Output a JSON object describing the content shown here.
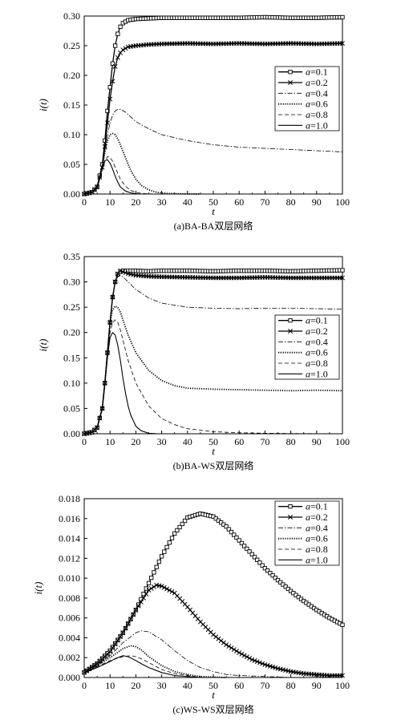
{
  "chart_data": [
    {
      "type": "line",
      "caption": "(a)BA-BA双层网络",
      "xlabel": "t",
      "ylabel": "i(t)",
      "xlim": [
        0,
        100
      ],
      "ylim": [
        0,
        0.3
      ],
      "xticks": [
        0,
        10,
        20,
        30,
        40,
        50,
        60,
        70,
        80,
        90,
        100
      ],
      "xtick_labels": [
        "0",
        "10",
        "20",
        "30",
        "40",
        "50",
        "60",
        "70",
        "80",
        "90",
        "100"
      ],
      "yticks": [
        0,
        0.05,
        0.1,
        0.15,
        0.2,
        0.25,
        0.3
      ],
      "ytick_labels": [
        "0.00",
        "0.05",
        "0.10",
        "0.15",
        "0.20",
        "0.25",
        "0.30"
      ],
      "legend_position": "right-middle",
      "series": [
        {
          "name": "a=0.1",
          "style": "square",
          "x": [
            0,
            3,
            5,
            7,
            8,
            9,
            10,
            11,
            12,
            13,
            14,
            15,
            17,
            20,
            25,
            30,
            40,
            50,
            60,
            70,
            80,
            90,
            100
          ],
          "y": [
            0,
            0.003,
            0.012,
            0.05,
            0.09,
            0.14,
            0.18,
            0.22,
            0.25,
            0.27,
            0.282,
            0.288,
            0.293,
            0.295,
            0.296,
            0.297,
            0.297,
            0.297,
            0.297,
            0.298,
            0.297,
            0.297,
            0.298
          ]
        },
        {
          "name": "a=0.2",
          "style": "cross",
          "x": [
            0,
            3,
            5,
            7,
            8,
            9,
            10,
            11,
            12,
            13,
            14,
            15,
            17,
            20,
            25,
            30,
            40,
            50,
            60,
            70,
            80,
            90,
            100
          ],
          "y": [
            0,
            0.003,
            0.012,
            0.045,
            0.08,
            0.12,
            0.16,
            0.19,
            0.215,
            0.23,
            0.238,
            0.243,
            0.248,
            0.25,
            0.252,
            0.253,
            0.254,
            0.253,
            0.254,
            0.253,
            0.254,
            0.253,
            0.254
          ]
        },
        {
          "name": "a=0.4",
          "style": "dashdot",
          "x": [
            0,
            3,
            5,
            7,
            8,
            9,
            10,
            11,
            12,
            13,
            14,
            16,
            18,
            20,
            25,
            30,
            40,
            50,
            60,
            70,
            80,
            90,
            100
          ],
          "y": [
            0,
            0.003,
            0.012,
            0.045,
            0.075,
            0.1,
            0.12,
            0.133,
            0.14,
            0.143,
            0.143,
            0.138,
            0.13,
            0.122,
            0.11,
            0.1,
            0.09,
            0.083,
            0.079,
            0.077,
            0.075,
            0.073,
            0.071
          ]
        },
        {
          "name": "a=0.6",
          "style": "dotted",
          "x": [
            0,
            3,
            5,
            7,
            8,
            9,
            10,
            11,
            12,
            13,
            14,
            15,
            16,
            18,
            20,
            22,
            25,
            28,
            32,
            36,
            40,
            45
          ],
          "y": [
            0,
            0.003,
            0.012,
            0.045,
            0.07,
            0.09,
            0.1,
            0.102,
            0.1,
            0.093,
            0.083,
            0.072,
            0.061,
            0.04,
            0.025,
            0.015,
            0.007,
            0.003,
            0.001,
            0.0005,
            0.0002,
            0
          ]
        },
        {
          "name": "a=0.8",
          "style": "dashed",
          "x": [
            0,
            3,
            5,
            7,
            8,
            9,
            10,
            11,
            12,
            13,
            14,
            16,
            18,
            20,
            22,
            25,
            30
          ],
          "y": [
            0,
            0.003,
            0.012,
            0.04,
            0.055,
            0.063,
            0.062,
            0.055,
            0.045,
            0.035,
            0.025,
            0.013,
            0.006,
            0.003,
            0.001,
            0.0003,
            0
          ]
        },
        {
          "name": "a=1.0",
          "style": "solid",
          "x": [
            0,
            3,
            5,
            6,
            7,
            8,
            9,
            10,
            11,
            12,
            13,
            14,
            16,
            18,
            20,
            22
          ],
          "y": [
            0,
            0.003,
            0.01,
            0.025,
            0.045,
            0.056,
            0.058,
            0.052,
            0.042,
            0.03,
            0.02,
            0.012,
            0.005,
            0.002,
            0.0005,
            0
          ]
        }
      ]
    },
    {
      "type": "line",
      "caption": "(b)BA-WS双层网络",
      "xlabel": "t",
      "ylabel": "i(t)",
      "xlim": [
        0,
        100
      ],
      "ylim": [
        0,
        0.35
      ],
      "xticks": [
        0,
        10,
        20,
        30,
        40,
        50,
        60,
        70,
        80,
        90,
        100
      ],
      "xtick_labels": [
        "0",
        "10",
        "20",
        "30",
        "40",
        "50",
        "60",
        "70",
        "80",
        "90",
        "100"
      ],
      "yticks": [
        0,
        0.05,
        0.1,
        0.15,
        0.2,
        0.25,
        0.3,
        0.35
      ],
      "ytick_labels": [
        "0.00",
        "0.05",
        "0.10",
        "0.15",
        "0.20",
        "0.25",
        "0.30",
        "0.35"
      ],
      "legend_position": "right-middle",
      "series": [
        {
          "name": "a=0.1",
          "style": "square",
          "x": [
            0,
            3,
            5,
            7,
            8,
            9,
            10,
            11,
            12,
            13,
            14,
            15,
            17,
            20,
            25,
            30,
            40,
            50,
            60,
            70,
            80,
            90,
            100
          ],
          "y": [
            0,
            0.003,
            0.012,
            0.05,
            0.1,
            0.16,
            0.22,
            0.27,
            0.3,
            0.315,
            0.32,
            0.322,
            0.322,
            0.322,
            0.321,
            0.322,
            0.322,
            0.321,
            0.322,
            0.322,
            0.321,
            0.322,
            0.323
          ]
        },
        {
          "name": "a=0.2",
          "style": "cross",
          "x": [
            0,
            3,
            5,
            7,
            8,
            9,
            10,
            11,
            12,
            13,
            14,
            15,
            17,
            20,
            25,
            30,
            40,
            50,
            60,
            70,
            80,
            90,
            100
          ],
          "y": [
            0,
            0.003,
            0.012,
            0.05,
            0.1,
            0.16,
            0.22,
            0.27,
            0.3,
            0.316,
            0.322,
            0.32,
            0.316,
            0.313,
            0.311,
            0.31,
            0.309,
            0.308,
            0.308,
            0.309,
            0.308,
            0.308,
            0.308
          ]
        },
        {
          "name": "a=0.4",
          "style": "dashdot",
          "x": [
            0,
            3,
            5,
            7,
            8,
            9,
            10,
            11,
            12,
            13,
            14,
            15,
            17,
            20,
            25,
            30,
            40,
            50,
            60,
            70,
            80,
            90,
            100
          ],
          "y": [
            0,
            0.003,
            0.012,
            0.05,
            0.1,
            0.16,
            0.22,
            0.27,
            0.3,
            0.31,
            0.313,
            0.31,
            0.3,
            0.285,
            0.268,
            0.258,
            0.25,
            0.248,
            0.247,
            0.248,
            0.248,
            0.247,
            0.246
          ]
        },
        {
          "name": "a=0.6",
          "style": "dotted",
          "x": [
            0,
            3,
            5,
            7,
            8,
            9,
            10,
            11,
            12,
            13,
            14,
            15,
            17,
            20,
            25,
            30,
            35,
            40,
            50,
            60,
            70,
            80,
            90,
            100
          ],
          "y": [
            0,
            0.003,
            0.012,
            0.05,
            0.1,
            0.16,
            0.22,
            0.245,
            0.252,
            0.25,
            0.24,
            0.225,
            0.195,
            0.16,
            0.125,
            0.105,
            0.095,
            0.09,
            0.088,
            0.087,
            0.086,
            0.085,
            0.086,
            0.085
          ]
        },
        {
          "name": "a=0.8",
          "style": "dashed",
          "x": [
            0,
            3,
            5,
            7,
            8,
            9,
            10,
            11,
            12,
            13,
            14,
            15,
            17,
            20,
            25,
            30,
            35,
            40,
            50,
            60,
            70,
            80,
            90,
            100
          ],
          "y": [
            0,
            0.003,
            0.012,
            0.05,
            0.1,
            0.15,
            0.2,
            0.22,
            0.225,
            0.22,
            0.205,
            0.185,
            0.145,
            0.1,
            0.055,
            0.03,
            0.018,
            0.01,
            0.004,
            0.002,
            0.001,
            0.0005,
            0.0002,
            0
          ]
        },
        {
          "name": "a=1.0",
          "style": "solid",
          "x": [
            0,
            3,
            5,
            7,
            8,
            9,
            10,
            11,
            12,
            13,
            14,
            15,
            16,
            17,
            18,
            20,
            22,
            25,
            28,
            30
          ],
          "y": [
            0,
            0.003,
            0.012,
            0.05,
            0.1,
            0.15,
            0.19,
            0.2,
            0.195,
            0.175,
            0.145,
            0.11,
            0.08,
            0.055,
            0.037,
            0.015,
            0.006,
            0.001,
            0.0002,
            0
          ]
        }
      ]
    },
    {
      "type": "line",
      "caption": "(c)WS-WS双层网络",
      "xlabel": "t",
      "ylabel": "i(t)",
      "xlim": [
        0,
        100
      ],
      "ylim": [
        0,
        0.018
      ],
      "xticks": [
        0,
        10,
        20,
        30,
        40,
        50,
        60,
        70,
        80,
        90,
        100
      ],
      "xtick_labels": [
        "0",
        "10",
        "20",
        "30",
        "40",
        "50",
        "60",
        "70",
        "80",
        "90",
        "100"
      ],
      "yticks": [
        0,
        0.002,
        0.004,
        0.006,
        0.008,
        0.01,
        0.012,
        0.014,
        0.016,
        0.018
      ],
      "ytick_labels": [
        "0.000",
        "0.002",
        "0.004",
        "0.006",
        "0.008",
        "0.010",
        "0.012",
        "0.014",
        "0.016",
        "0.018"
      ],
      "legend_position": "top-right",
      "series": [
        {
          "name": "a=0.1",
          "style": "square",
          "x": [
            0,
            5,
            10,
            15,
            20,
            25,
            30,
            35,
            40,
            45,
            50,
            55,
            60,
            65,
            70,
            75,
            80,
            85,
            90,
            95,
            100
          ],
          "y": [
            0.0005,
            0.0014,
            0.0027,
            0.0045,
            0.0068,
            0.0095,
            0.0122,
            0.0145,
            0.0161,
            0.0165,
            0.0162,
            0.0152,
            0.0138,
            0.0124,
            0.011,
            0.0098,
            0.0087,
            0.0077,
            0.0068,
            0.006,
            0.0053
          ]
        },
        {
          "name": "a=0.2",
          "style": "cross",
          "x": [
            0,
            5,
            10,
            15,
            20,
            25,
            28,
            30,
            35,
            40,
            45,
            50,
            55,
            60,
            65,
            70,
            75,
            80,
            85,
            90,
            95,
            100
          ],
          "y": [
            0.0005,
            0.0014,
            0.0026,
            0.0045,
            0.0068,
            0.0088,
            0.0093,
            0.0092,
            0.0085,
            0.0071,
            0.0056,
            0.0043,
            0.0033,
            0.0025,
            0.0018,
            0.0013,
            0.0009,
            0.0006,
            0.0004,
            0.0003,
            0.0002,
            0.0002
          ]
        },
        {
          "name": "a=0.4",
          "style": "dashdot",
          "x": [
            0,
            5,
            10,
            15,
            20,
            22,
            25,
            30,
            35,
            40,
            45,
            50,
            55,
            60,
            70,
            80
          ],
          "y": [
            0.0005,
            0.0013,
            0.0022,
            0.0035,
            0.0045,
            0.0047,
            0.0046,
            0.0038,
            0.0027,
            0.0017,
            0.001,
            0.0006,
            0.0003,
            0.0002,
            0.0001,
            0
          ]
        },
        {
          "name": "a=0.6",
          "style": "dotted",
          "x": [
            0,
            5,
            10,
            15,
            18,
            20,
            22,
            25,
            30,
            35,
            40,
            45,
            50,
            55
          ],
          "y": [
            0.0005,
            0.0012,
            0.002,
            0.0029,
            0.0032,
            0.0031,
            0.0028,
            0.0021,
            0.0012,
            0.0006,
            0.0003,
            0.0001,
            5e-05,
            0
          ]
        },
        {
          "name": "a=0.8",
          "style": "dashed",
          "x": [
            0,
            5,
            10,
            15,
            18,
            20,
            22,
            25,
            30,
            35,
            40,
            45
          ],
          "y": [
            0.0005,
            0.0011,
            0.0017,
            0.0021,
            0.0022,
            0.0021,
            0.0019,
            0.0015,
            0.0008,
            0.0004,
            0.0002,
            0
          ]
        },
        {
          "name": "a=1.0",
          "style": "solid",
          "x": [
            0,
            5,
            10,
            12,
            15,
            17,
            20,
            22,
            25,
            30,
            35,
            40,
            45
          ],
          "y": [
            0.0005,
            0.001,
            0.0016,
            0.0019,
            0.0022,
            0.0021,
            0.0017,
            0.0014,
            0.001,
            0.0005,
            0.0002,
            0.0001,
            0
          ]
        }
      ]
    }
  ]
}
